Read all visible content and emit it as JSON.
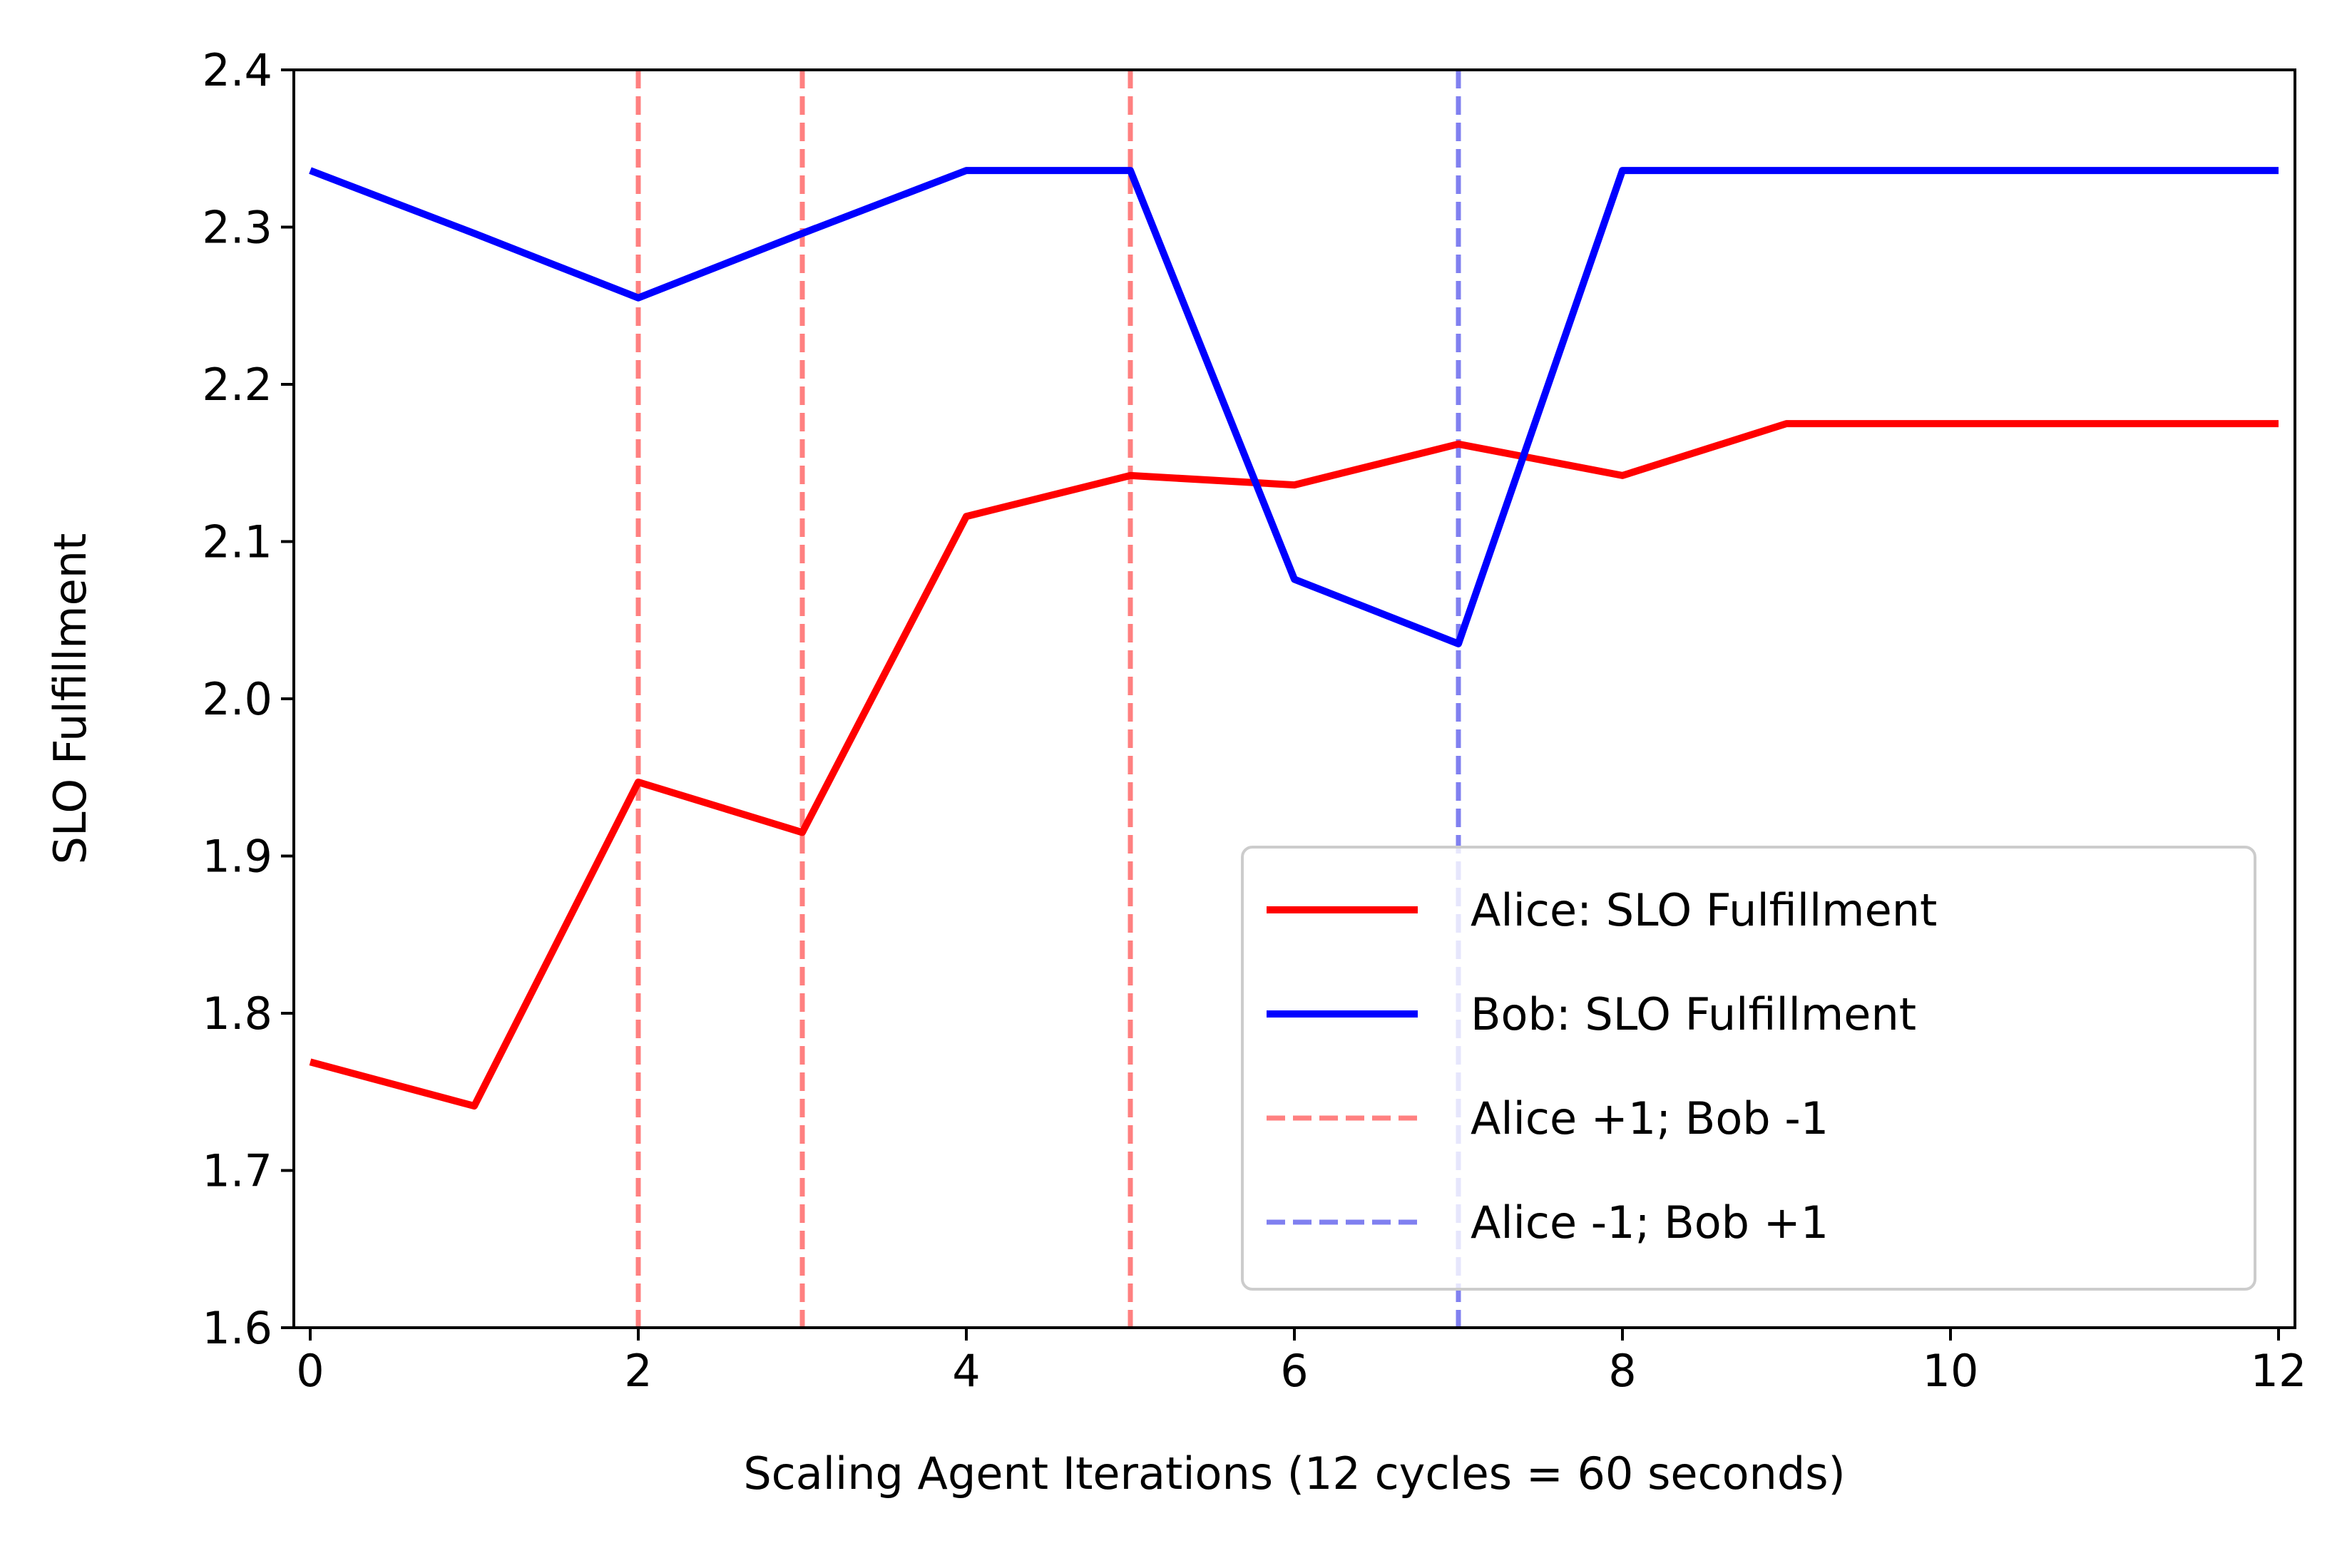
{
  "chart_data": {
    "type": "line",
    "xlabel": "Scaling Agent Iterations (12 cycles = 60 seconds)",
    "ylabel": "SLO Fulfillment",
    "xlim": [
      -0.1,
      12.1
    ],
    "ylim": [
      1.6,
      2.4
    ],
    "xticks": [
      0,
      2,
      4,
      6,
      8,
      10,
      12
    ],
    "yticks": [
      1.6,
      1.7,
      1.8,
      1.9,
      2.0,
      2.1,
      2.2,
      2.3,
      2.4
    ],
    "grid": false,
    "legend_position": "lower-right",
    "x": [
      0,
      1,
      2,
      3,
      4,
      5,
      6,
      7,
      8,
      9,
      10,
      11,
      12
    ],
    "series": [
      {
        "name": "Alice: SLO Fulfillment",
        "color": "#ff0000",
        "style": "solid",
        "values": [
          1.769,
          1.741,
          1.947,
          1.915,
          2.116,
          2.142,
          2.136,
          2.162,
          2.142,
          2.175,
          2.175,
          2.175,
          2.175
        ]
      },
      {
        "name": "Bob: SLO Fulfillment",
        "color": "#0000ff",
        "style": "solid",
        "values": [
          2.336,
          2.296,
          2.255,
          2.296,
          2.336,
          2.336,
          2.076,
          2.035,
          2.336,
          2.336,
          2.336,
          2.336,
          2.336
        ]
      }
    ],
    "vlines": [
      {
        "name": "Alice +1; Bob -1",
        "color": "#ff8080",
        "style": "dashed",
        "x": [
          2,
          3,
          5
        ]
      },
      {
        "name": "Alice -1; Bob +1",
        "color": "#8080f0",
        "style": "dashed",
        "x": [
          7
        ]
      }
    ]
  }
}
